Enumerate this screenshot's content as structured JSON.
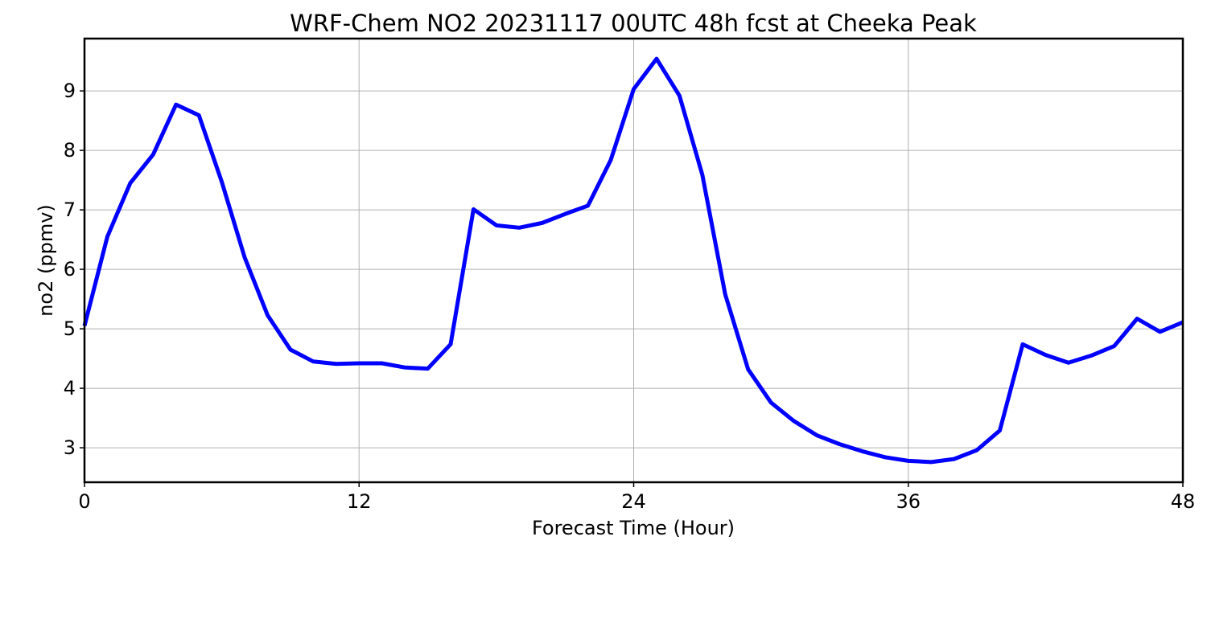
{
  "chart_data": {
    "type": "line",
    "title": "WRF-Chem NO2  20231117 00UTC 48h fcst at Cheeka Peak",
    "xlabel": "Forecast Time (Hour)",
    "ylabel": "no2  (ppmv)",
    "xlim": [
      0,
      48
    ],
    "ylim": [
      2.42,
      9.88
    ],
    "xticks": [
      0,
      12,
      24,
      36,
      48
    ],
    "yticks": [
      3,
      4,
      5,
      6,
      7,
      8,
      9
    ],
    "grid": true,
    "series": [
      {
        "color": "#0000ff",
        "x": [
          0,
          1,
          2,
          3,
          4,
          5,
          6,
          7,
          8,
          9,
          10,
          11,
          12,
          13,
          14,
          15,
          16,
          17,
          18,
          19,
          20,
          21,
          22,
          23,
          24,
          25,
          26,
          27,
          28,
          29,
          30,
          31,
          32,
          33,
          34,
          35,
          36,
          37,
          38,
          39,
          40,
          41,
          42,
          43,
          44,
          45,
          46,
          47,
          48
        ],
        "values": [
          5.05,
          6.55,
          7.45,
          7.93,
          8.77,
          8.59,
          7.47,
          6.2,
          5.23,
          4.65,
          4.45,
          4.41,
          4.42,
          4.42,
          4.35,
          4.33,
          4.74,
          7.01,
          6.74,
          6.7,
          6.78,
          6.93,
          7.07,
          7.84,
          9.03,
          9.54,
          8.92,
          7.59,
          5.58,
          4.32,
          3.76,
          3.45,
          3.21,
          3.06,
          2.94,
          2.84,
          2.78,
          2.76,
          2.81,
          2.96,
          3.29,
          4.74,
          4.56,
          4.43,
          4.55,
          4.71,
          5.17,
          4.95,
          5.11
        ]
      }
    ]
  }
}
